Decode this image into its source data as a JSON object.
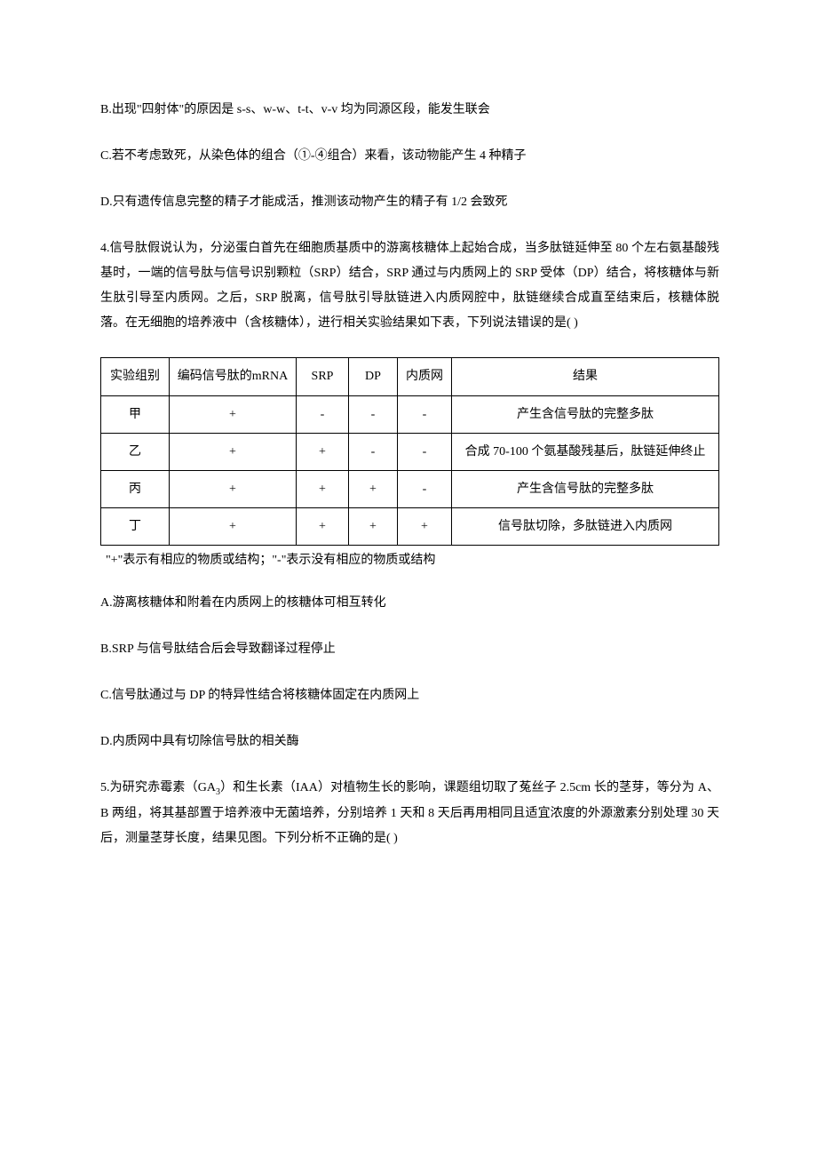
{
  "optB3": "B.出现\"四射体\"的原因是 s-s、w-w、t-t、v-v 均为同源区段，能发生联会",
  "optC3": "C.若不考虑致死，从染色体的组合（①-④组合）来看，该动物能产生 4 种精子",
  "optD3": "D.只有遗传信息完整的精子才能成活，推测该动物产生的精子有 1/2 会致死",
  "q4": "4.信号肽假说认为，分泌蛋白首先在细胞质基质中的游离核糖体上起始合成，当多肽链延伸至 80 个左右氨基酸残基时，一端的信号肽与信号识别颗粒（SRP）结合，SRP 通过与内质网上的 SRP 受体（DP）结合，将核糖体与新生肽引导至内质网。之后，SRP 脱离，信号肽引导肽链进入内质网腔中，肽链继续合成直至结束后，核糖体脱落。在无细胞的培养液中（含核糖体），进行相关实验结果如下表，下列说法错误的是(      )",
  "table": {
    "headers": {
      "group": "实验组别",
      "mrna": "编码信号肽的mRNA",
      "srp": "SRP",
      "dp": "DP",
      "er": "内质网",
      "result": "结果"
    },
    "rows": [
      {
        "group": "甲",
        "mrna": "+",
        "srp": "-",
        "dp": "-",
        "er": "-",
        "result": "产生含信号肽的完整多肽"
      },
      {
        "group": "乙",
        "mrna": "+",
        "srp": "+",
        "dp": "-",
        "er": "-",
        "result": "合成 70-100 个氨基酸残基后，肽链延伸终止"
      },
      {
        "group": "丙",
        "mrna": "+",
        "srp": "+",
        "dp": "+",
        "er": "-",
        "result": "产生含信号肽的完整多肽"
      },
      {
        "group": "丁",
        "mrna": "+",
        "srp": "+",
        "dp": "+",
        "er": "+",
        "result": "信号肽切除，多肽链进入内质网"
      }
    ]
  },
  "footnote": "\"+\"表示有相应的物质或结构；\"-\"表示没有相应的物质或结构",
  "optA4": "A.游离核糖体和附着在内质网上的核糖体可相互转化",
  "optB4": "B.SRP 与信号肽结合后会导致翻译过程停止",
  "optC4": "C.信号肽通过与 DP 的特异性结合将核糖体固定在内质网上",
  "optD4": "D.内质网中具有切除信号肽的相关酶",
  "q5_pre": "5.为研究赤霉素（GA",
  "q5_sub": "3",
  "q5_post": "）和生长素（IAA）对植物生长的影响，课题组切取了菟丝子 2.5cm 长的茎芽，等分为 A、B 两组，将其基部置于培养液中无菌培养，分别培养 1 天和 8 天后再用相同且适宜浓度的外源激素分别处理 30 天后，测量茎芽长度，结果见图。下列分析不正确的是(      )"
}
